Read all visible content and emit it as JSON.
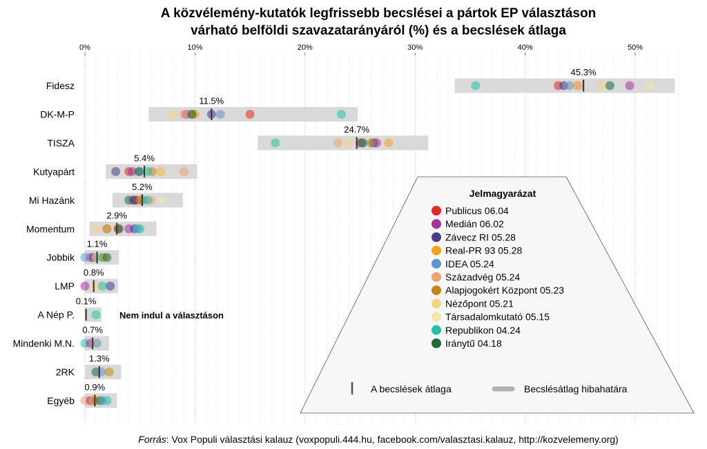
{
  "chart_data": {
    "type": "scatter",
    "title": "A közvélemény-kutatók legfrissebb becslései a pártok EP választáson várható belföldi szavazatarányáról (%) és a becslések átlaga",
    "title_lines": [
      "A közvélemény-kutatók legfrissebb becslései a pártok EP választáson",
      "várható belföldi szavazatarányáról (%) és a becslések átlaga"
    ],
    "xlabel": "",
    "ylabel": "",
    "xlim": [
      0,
      54
    ],
    "x_ticks": [
      0,
      10,
      20,
      30,
      40,
      50
    ],
    "x_tick_labels": [
      "0%",
      "10%",
      "20%",
      "30%",
      "40%",
      "50%"
    ],
    "grid": "vertical dotted, every 1%",
    "pollsters": [
      {
        "name": "Publicus 06.04",
        "color": "#e8271d"
      },
      {
        "name": "Medián 06.02",
        "color": "#a8309c"
      },
      {
        "name": "Závecz RI 05.28",
        "color": "#463b8a"
      },
      {
        "name": "Real-PR 93 05.28",
        "color": "#f7a21b"
      },
      {
        "name": "IDEA 05.24",
        "color": "#5b97cf"
      },
      {
        "name": "Századvég 05.24",
        "color": "#f0a26a"
      },
      {
        "name": "Alapjogokért Központ 05.23",
        "color": "#c4860f"
      },
      {
        "name": "Nézőpont 05.21",
        "color": "#f0d480"
      },
      {
        "name": "Társadalomkutató 05.15",
        "color": "#efe6a8"
      },
      {
        "name": "Republikon 04.24",
        "color": "#1dc4a5"
      },
      {
        "name": "Iránytű 04.18",
        "color": "#1e6b3b"
      }
    ],
    "parties": [
      {
        "name": "Fidesz",
        "average": 45.3,
        "average_label": "45.3%",
        "error_range": [
          33.6,
          53.6
        ],
        "estimates": {
          "Publicus 06.04": 43.0,
          "Medián 06.02": 49.5,
          "Závecz RI 05.28": 43.5,
          "Real-PR 93 05.28": 44.7,
          "IDEA 05.24": 44.0,
          "Századvég 05.24": 44.9,
          "Nézőpont 05.21": 47.0,
          "Társadalomkutató 05.15": 51.4,
          "Republikon 04.24": 35.5,
          "Iránytű 04.18": 47.7
        }
      },
      {
        "name": "DK-M-P",
        "average": 11.5,
        "average_label": "11.5%",
        "error_range": [
          5.8,
          24.8
        ],
        "estimates": {
          "Publicus 06.04": 15.0,
          "Medián 06.02": 9.2,
          "Závecz RI 05.28": 11.5,
          "Real-PR 93 05.28": 10.0,
          "IDEA 05.24": 12.3,
          "Századvég 05.24": 9.0,
          "Alapjogokért Központ 05.23": 9.8,
          "Nézőpont 05.21": 8.0,
          "Republikon 04.24": 23.3,
          "Iránytű 04.18": 9.7
        }
      },
      {
        "name": "TISZA",
        "average": 24.7,
        "average_label": "24.7%",
        "error_range": [
          15.7,
          31.2
        ],
        "estimates": {
          "Publicus 06.04": 25.0,
          "Medián 06.02": 26.5,
          "Závecz RI 05.28": 26.2,
          "Real-PR 93 05.28": 27.6,
          "IDEA 05.24": 25.3,
          "Századvég 05.24": 23.0,
          "Alapjogokért Központ 05.23": 26.0,
          "Nézőpont 05.21": 24.0,
          "Republikon 04.24": 17.3,
          "Iránytű 04.18": 25.2
        }
      },
      {
        "name": "Kutyapárt",
        "average": 5.4,
        "average_label": "5.4%",
        "error_range": [
          1.9,
          10.2
        ],
        "estimates": {
          "Publicus 06.04": 4.0,
          "Medián 06.02": 4.3,
          "Závecz RI 05.28": 2.8,
          "Real-PR 93 05.28": 6.9,
          "IDEA 05.24": 5.0,
          "Századvég 05.24": 9.0,
          "Alapjogokért Központ 05.23": 6.1,
          "Nézőpont 05.21": 7.0,
          "Republikon 04.24": 5.7,
          "Iránytű 04.18": 4.9
        }
      },
      {
        "name": "Mi Hazánk",
        "average": 5.2,
        "average_label": "5.2%",
        "error_range": [
          2.5,
          8.9
        ],
        "estimates": {
          "Publicus 06.04": 4.7,
          "Medián 06.02": 4.5,
          "Závecz RI 05.28": 4.4,
          "Real-PR 93 05.28": 5.2,
          "IDEA 05.24": 5.3,
          "Századvég 05.24": 6.0,
          "Alapjogokért Központ 05.23": 5.0,
          "Társadalomkutató 05.15": 7.0,
          "Republikon 04.24": 5.7,
          "Iránytű 04.18": 4.0
        }
      },
      {
        "name": "Momentum",
        "average": 2.9,
        "average_label": "2.9%",
        "error_range": [
          0.4,
          6.5
        ],
        "estimates": {
          "Publicus 06.04": 3.0,
          "Medián 06.02": 4.0,
          "Závecz RI 05.28": 4.5,
          "IDEA 05.24": 4.8,
          "Századvég 05.24": 2.0,
          "Alapjogokért Központ 05.23": 2.0,
          "Nézőpont 05.21": 1.0,
          "Republikon 04.24": 5.0,
          "Iránytű 04.18": 3.1
        }
      },
      {
        "name": "Jobbik",
        "average": 1.1,
        "average_label": "1.1%",
        "error_range": [
          0.0,
          3.1
        ],
        "estimates": {
          "Medián 06.02": 0.5,
          "Závecz RI 05.28": 0.8,
          "IDEA 05.24": 0.0,
          "Nézőpont 05.21": 1.0,
          "Republikon 04.24": 1.5,
          "Alapjogokért Központ 05.23": 1.7,
          "Iránytű 04.18": 2.0
        }
      },
      {
        "name": "LMP",
        "average": 0.8,
        "average_label": "0.8%",
        "error_range": [
          0.0,
          3.0
        ],
        "estimates": {
          "Medián 06.02": 0.0,
          "Nézőpont 05.21": 1.0,
          "Republikon 04.24": 1.6,
          "Závecz RI 05.28": 2.3
        }
      },
      {
        "name": "A Nép P.",
        "average": 0.1,
        "average_label": "0.1%",
        "error_range": [
          0.0,
          1.5
        ],
        "estimates": {
          "Republikon 04.24": 1.0
        },
        "note": "Nem indul a választáson"
      },
      {
        "name": "Mindenki M.N.",
        "average": 0.7,
        "average_label": "0.7%",
        "error_range": [
          0.0,
          2.2
        ],
        "estimates": {
          "Republikon 04.24": 0.0,
          "Medián 06.02": 0.5,
          "Nézőpont 05.21": 1.0,
          "IDEA 05.24": 1.1
        }
      },
      {
        "name": "2RK",
        "average": 1.3,
        "average_label": "1.3%",
        "error_range": [
          0.0,
          3.3
        ],
        "estimates": {
          "Iránytű 04.18": 1.0,
          "IDEA 05.24": 1.5,
          "Alapjogokért Központ 05.23": 2.2
        }
      },
      {
        "name": "Egyéb",
        "average": 0.9,
        "average_label": "0.9%",
        "error_range": [
          0.0,
          2.9
        ],
        "estimates": {
          "Századvég 05.24": 0.0,
          "Medián 06.02": 0.5,
          "Real-PR 93 05.28": 0.8,
          "Alapjogokért Központ 05.23": 1.0,
          "Iránytű 04.18": 1.4,
          "IDEA 05.24": 1.6,
          "Republikon 04.24": 2.0
        }
      }
    ],
    "legend": {
      "title": "Jelmagyarázat",
      "placement": "bottom-right",
      "average_marker_label": "A becslések átlaga",
      "error_band_label": "Becslésátlag hibahatára"
    }
  },
  "source": {
    "prefix": "Forrás",
    "text": ": Vox Populi választási kalauz (voxpopuli.444.hu, facebook.com/valasztasi.kalauz, http://kozvelemeny.org)"
  },
  "colors": {
    "band": "#d9d9d9",
    "average_marker": "#3a3a3a",
    "legend_bg": "#f7f7f7",
    "grid": "#c8c8c8"
  }
}
